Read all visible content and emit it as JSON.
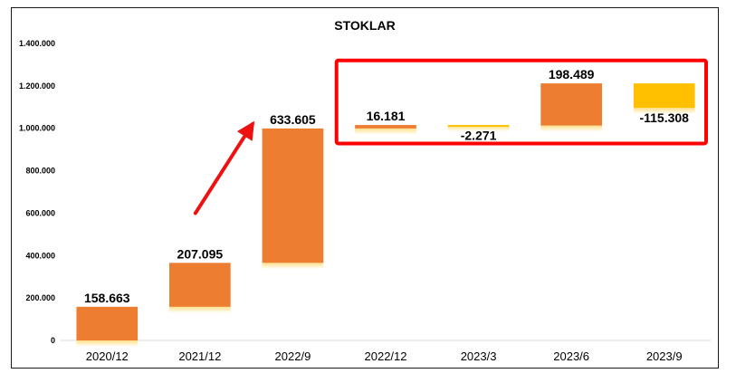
{
  "chart_data": {
    "type": "waterfall",
    "title": "STOKLAR",
    "categories": [
      "2020/12",
      "2021/12",
      "2022/9",
      "2022/12",
      "2023/3",
      "2023/6",
      "2023/9"
    ],
    "values": [
      158663,
      207095,
      633605,
      16181,
      -2271,
      198489,
      -115308
    ],
    "value_labels": [
      "158.663",
      "207.095",
      "633.605",
      "16.181",
      "-2.271",
      "198.489",
      "-115.308"
    ],
    "ylim": [
      0,
      1400000
    ],
    "yticks": [
      0,
      200000,
      400000,
      600000,
      800000,
      1000000,
      1200000,
      1400000
    ],
    "ytick_labels": [
      "0",
      "200.000",
      "400.000",
      "600.000",
      "800.000",
      "1.000.000",
      "1.200.000",
      "1.400.000"
    ],
    "grid": false,
    "colors": {
      "increase": "#ED7D31",
      "decrease": "#FFC000",
      "highlight_box": "#FF0000",
      "arrow": "#EE1111"
    },
    "annotations": [
      "trend-arrow",
      "highlight-box-last-four"
    ]
  }
}
